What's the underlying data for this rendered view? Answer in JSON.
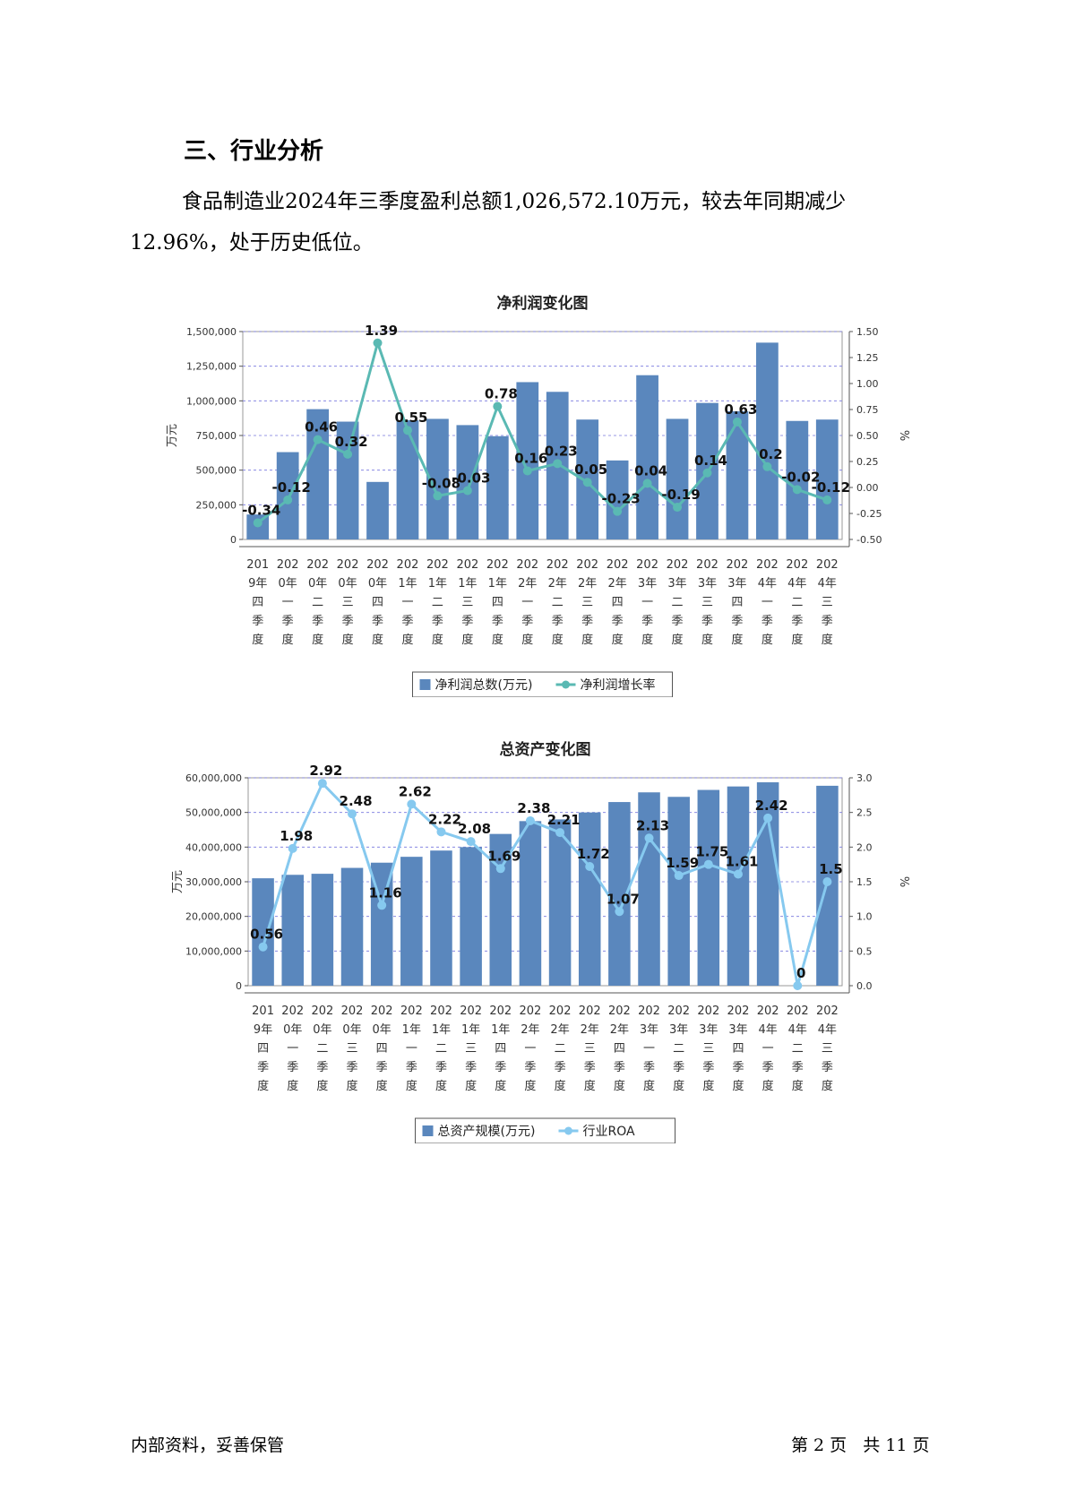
{
  "section": {
    "heading": "三、行业分析",
    "paragraph": "食品制造业2024年三季度盈利总额1,026,572.10万元，较去年同期减少12.96%，处于历史低位。"
  },
  "colors": {
    "bar": "#5a87bd",
    "line1": "#5ab9b3",
    "line2": "#86c9ef",
    "grid": "#6666cc"
  },
  "chart_data": [
    {
      "type": "bar",
      "title": "净利润变化图",
      "ylabel": "万元",
      "y2label": "%",
      "categories": [
        "2019年四季度",
        "2020年一季度",
        "2020年二季度",
        "2020年三季度",
        "2020年四季度",
        "2021年一季度",
        "2021年二季度",
        "2021年三季度",
        "2021年四季度",
        "2022年一季度",
        "2022年二季度",
        "2022年三季度",
        "2022年四季度",
        "2023年一季度",
        "2023年二季度",
        "2023年三季度",
        "2023年四季度",
        "2024年一季度",
        "2024年二季度",
        "2024年三季度"
      ],
      "series": [
        {
          "name": "净利润总数(万元)",
          "type": "bar",
          "axis": "left",
          "values": [
            180000,
            630000,
            940000,
            850000,
            415000,
            860000,
            870000,
            825000,
            745000,
            1135000,
            1065000,
            865000,
            570000,
            1185000,
            870000,
            985000,
            925000,
            1420000,
            855000,
            865000
          ]
        },
        {
          "name": "净利润增长率",
          "type": "line",
          "axis": "right",
          "values": [
            -0.34,
            -0.12,
            0.46,
            0.32,
            1.39,
            0.55,
            -0.08,
            -0.03,
            0.78,
            0.16,
            0.23,
            0.05,
            -0.23,
            0.04,
            -0.19,
            0.14,
            0.63,
            0.2,
            -0.02,
            -0.12
          ]
        }
      ],
      "yticks": [
        "0",
        "250,000",
        "500,000",
        "750,000",
        "1,000,000",
        "1,250,000",
        "1,500,000"
      ],
      "y2ticks": [
        "-0.50",
        "-0.25",
        "0.00",
        "0.25",
        "0.50",
        "0.75",
        "1.00",
        "1.25",
        "1.50"
      ],
      "ylim": [
        0,
        1500000
      ],
      "y2lim": [
        -0.5,
        1.5
      ],
      "grid": true,
      "legend_position": "bottom"
    },
    {
      "type": "bar",
      "title": "总资产变化图",
      "ylabel": "万元",
      "y2label": "%",
      "categories": [
        "2019年四季度",
        "2020年一季度",
        "2020年二季度",
        "2020年三季度",
        "2020年四季度",
        "2021年一季度",
        "2021年二季度",
        "2021年三季度",
        "2021年四季度",
        "2022年一季度",
        "2022年二季度",
        "2022年三季度",
        "2022年四季度",
        "2023年一季度",
        "2023年二季度",
        "2023年三季度",
        "2023年四季度",
        "2024年一季度",
        "2024年二季度",
        "2024年三季度"
      ],
      "series": [
        {
          "name": "总资产规模(万元)",
          "type": "bar",
          "axis": "left",
          "values": [
            31000000,
            32000000,
            32300000,
            34000000,
            35500000,
            37200000,
            39000000,
            40000000,
            43800000,
            47500000,
            48000000,
            50000000,
            53000000,
            55800000,
            54500000,
            56500000,
            57500000,
            58700000,
            0,
            57700000
          ]
        },
        {
          "name": "行业ROA",
          "type": "line",
          "axis": "right",
          "values": [
            0.56,
            1.98,
            2.92,
            2.48,
            1.16,
            2.62,
            2.22,
            2.08,
            1.69,
            2.38,
            2.21,
            1.72,
            1.07,
            2.13,
            1.59,
            1.75,
            1.61,
            2.42,
            0,
            1.5
          ]
        }
      ],
      "yticks": [
        "0",
        "10,000,000",
        "20,000,000",
        "30,000,000",
        "40,000,000",
        "50,000,000",
        "60,000,000"
      ],
      "y2ticks": [
        "0.0",
        "0.5",
        "1.0",
        "1.5",
        "2.0",
        "2.5",
        "3.0"
      ],
      "ylim": [
        0,
        60000000
      ],
      "y2lim": [
        0,
        3
      ],
      "grid": true,
      "legend_position": "bottom"
    }
  ],
  "footer": {
    "left": "内部资料，妥善保管",
    "right": "第 2 页   共 11 页"
  }
}
